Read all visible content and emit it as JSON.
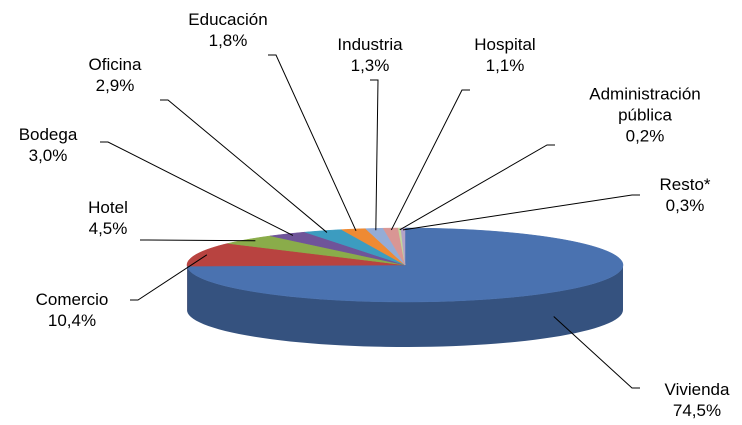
{
  "chart_data": {
    "type": "pie",
    "categories": [
      "Vivienda",
      "Comercio",
      "Hotel",
      "Bodega",
      "Oficina",
      "Educación",
      "Industria",
      "Hospital",
      "Administración pública",
      "Resto*"
    ],
    "values": [
      74.5,
      10.4,
      4.5,
      3.0,
      2.9,
      1.8,
      1.3,
      1.1,
      0.2,
      0.3
    ],
    "value_labels": [
      "74,5%",
      "10,4%",
      "4,5%",
      "3,0%",
      "2,9%",
      "1,8%",
      "1,3%",
      "1,1%",
      "0,2%",
      "0,3%"
    ],
    "colors": [
      "#4a72b0",
      "#b84340",
      "#8aac4a",
      "#6f5499",
      "#3c9cc0",
      "#ee8a33",
      "#94acd6",
      "#d99694",
      "#c2d69b",
      "#b3a2c7"
    ]
  }
}
